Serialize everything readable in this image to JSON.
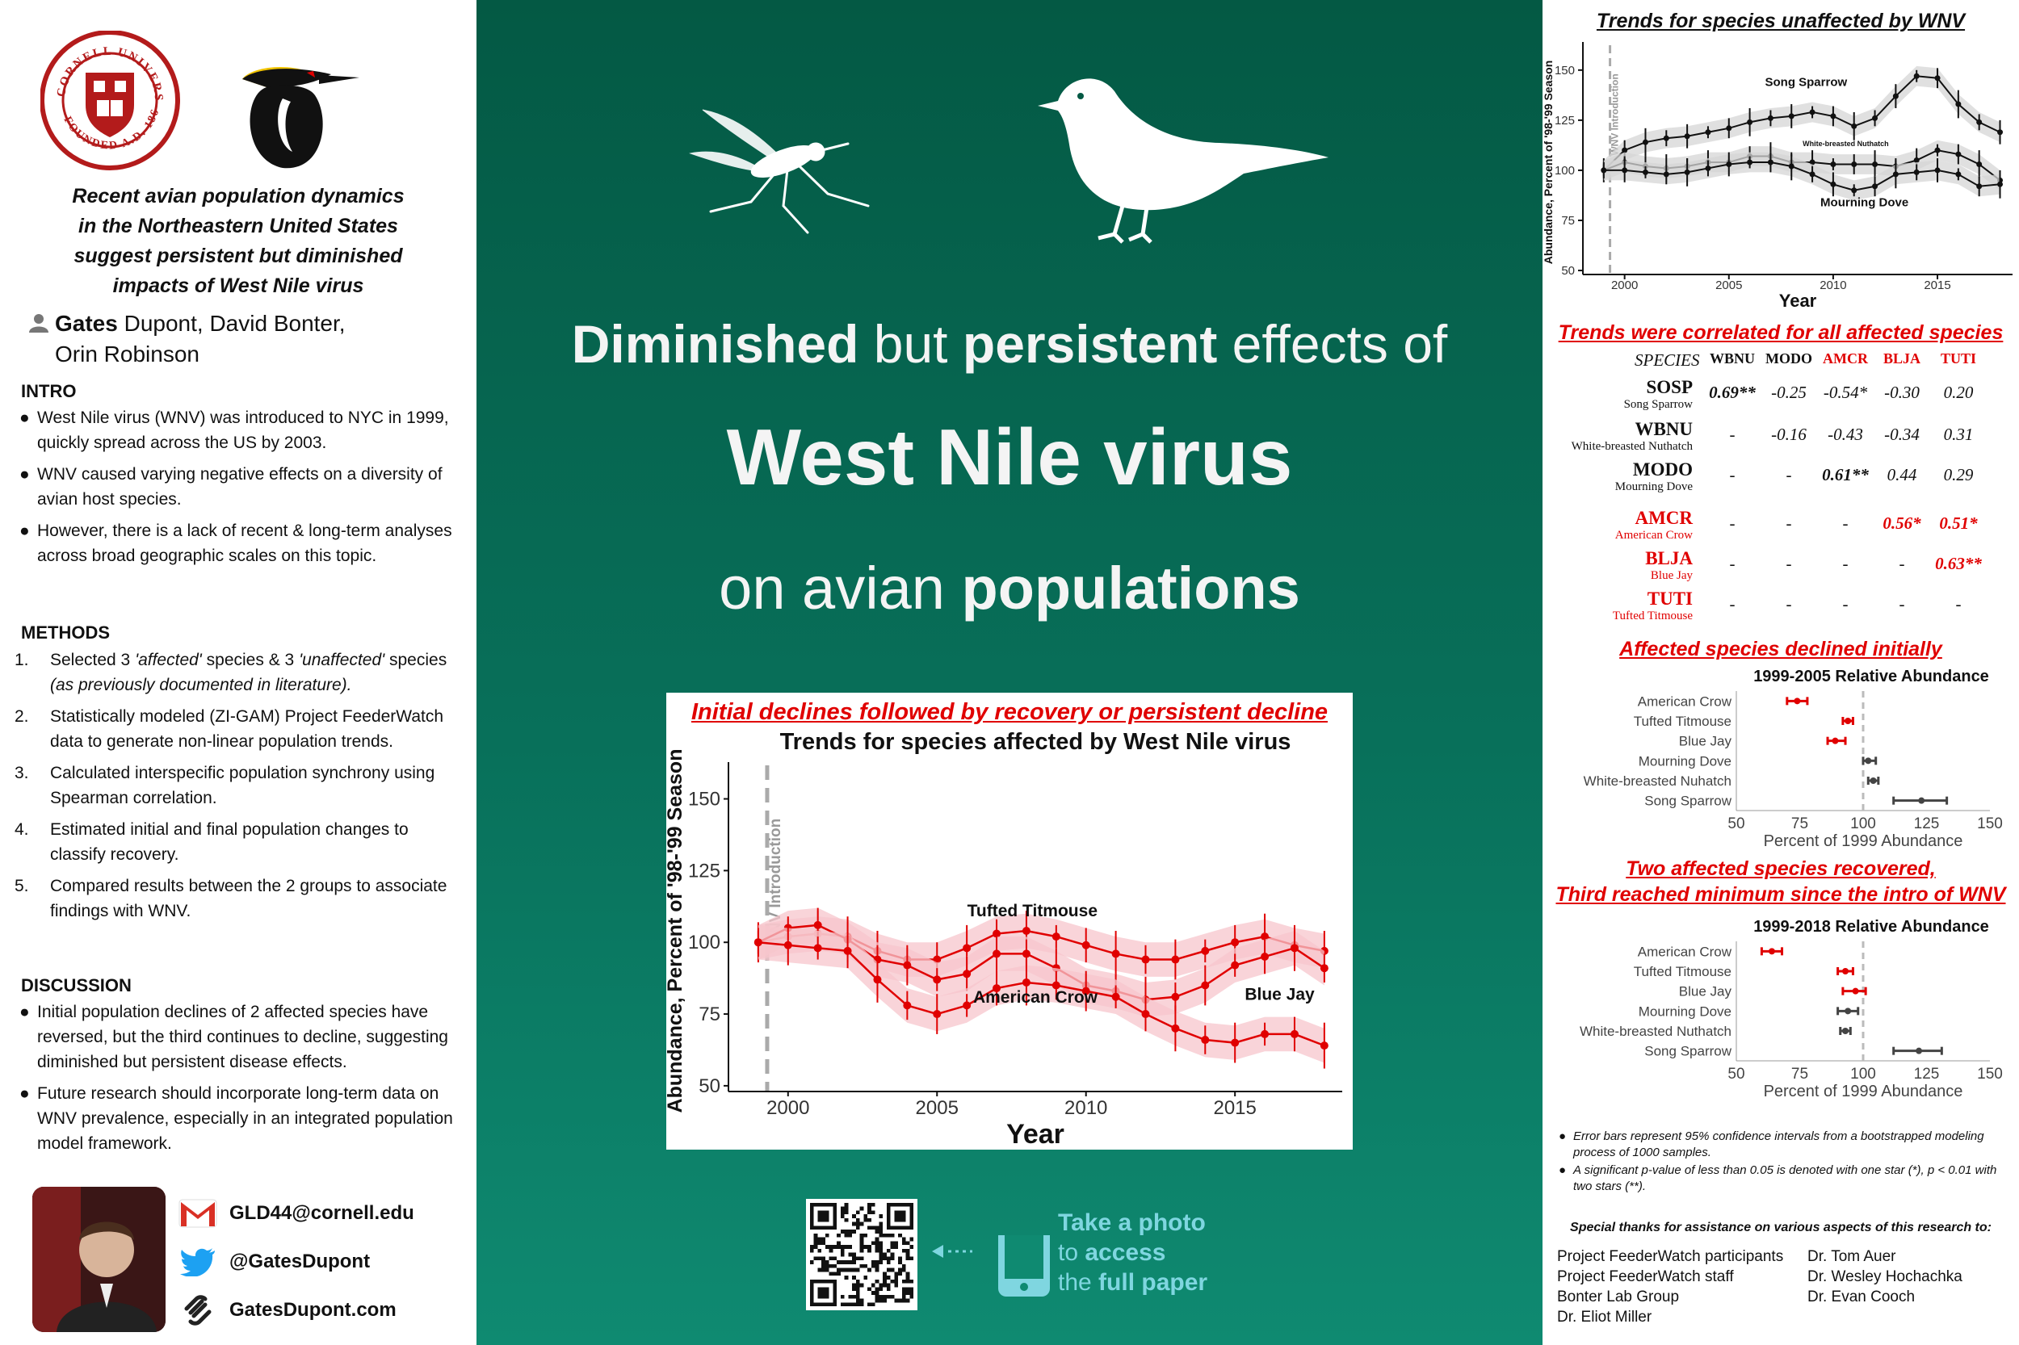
{
  "left": {
    "university_seal_text": "CORNELL UNIVERSITY FOUNDED A.D. 1865",
    "paper_title": [
      "Recent avian population dynamics",
      "in the Northeastern United States",
      "suggest persistent but diminished",
      "impacts of West Nile virus"
    ],
    "authors_lead": "Gates",
    "authors_line1_rest": " Dupont, David Bonter,",
    "authors_line2": "Orin Robinson",
    "intro_heading": "INTRO",
    "intro_items": [
      "West Nile virus (WNV) was introduced to NYC in 1999, quickly spread across the US by 2003.",
      "WNV caused varying negative effects on a diversity of avian host species.",
      "However, there is a lack of recent & long-term analyses across broad geographic scales on this topic."
    ],
    "methods_heading": "METHODS",
    "methods_items": [
      {
        "num": "1.",
        "pre": "Selected  3 ",
        "em1": "'affected'",
        "mid": " species & 3 ",
        "em2": "'unaffected'",
        "post": " species ",
        "em3": "(as previously documented  in literature)."
      },
      {
        "num": "2.",
        "text": "Statistically modeled (ZI-GAM) Project FeederWatch data to generate non-linear population trends."
      },
      {
        "num": "3.",
        "text": "Calculated interspecific population synchrony using Spearman correlation."
      },
      {
        "num": "4.",
        "text": "Estimated initial and final population changes to classify recovery."
      },
      {
        "num": "5.",
        "text": "Compared results between the 2 groups to associate findings with WNV."
      }
    ],
    "discussion_heading": "DISCUSSION",
    "discussion_items": [
      "Initial population declines of 2 affected species have reversed, but the third continues to decline, suggesting diminished but persistent disease effects.",
      "Future research should incorporate long-term data on WNV prevalence, especially in an integrated population model framework."
    ],
    "contact": {
      "email": "GLD44@cornell.edu",
      "twitter": "@GatesDupont",
      "website": "GatesDupont.com"
    }
  },
  "center": {
    "headline1": {
      "a": "Diminished",
      "b": " but ",
      "c": "persistent",
      "d": " effects of"
    },
    "headline2": "West Nile virus",
    "headline3": {
      "a": "on avian ",
      "b": "populations"
    },
    "chart_heading": "Initial declines followed by recovery or persistent decline",
    "cta": {
      "l1a": "Take a photo",
      "l2a": "to ",
      "l2b": "access",
      "l3a": "the ",
      "l3b": "full paper"
    }
  },
  "right": {
    "unaffected_heading": "Trends for species unaffected by WNV",
    "corr_heading": "Trends were correlated for all affected species",
    "corr_table": {
      "corner": "SPECIES",
      "columns": [
        "WBNU",
        "MODO",
        "AMCR",
        "BLJA",
        "TUTI"
      ],
      "column_colors": [
        "#111111",
        "#111111",
        "#e00000",
        "#e00000",
        "#e00000"
      ],
      "rows": [
        {
          "code": "SOSP",
          "name": "Song Sparrow",
          "color": "#111111",
          "cells": [
            "0.69**",
            "-0.25",
            "-0.54*",
            "-0.30",
            "0.20"
          ],
          "bold": [
            true,
            false,
            false,
            false,
            false
          ]
        },
        {
          "code": "WBNU",
          "name": "White-breasted Nuthatch",
          "color": "#111111",
          "cells": [
            "-",
            "-0.16",
            "-0.43",
            "-0.34",
            "0.31"
          ],
          "bold": [
            false,
            false,
            false,
            false,
            false
          ]
        },
        {
          "code": "MODO",
          "name": "Mourning Dove",
          "color": "#111111",
          "cells": [
            "-",
            "-",
            "0.61**",
            "0.44",
            "0.29"
          ],
          "bold": [
            false,
            false,
            true,
            false,
            false
          ]
        },
        {
          "code": "AMCR",
          "name": "American Crow",
          "color": "#e00000",
          "cells": [
            "-",
            "-",
            "-",
            "0.56*",
            "0.51*"
          ],
          "bold": [
            false,
            false,
            false,
            true,
            true
          ]
        },
        {
          "code": "BLJA",
          "name": "Blue Jay",
          "color": "#e00000",
          "cells": [
            "-",
            "-",
            "-",
            "-",
            "0.63**"
          ],
          "bold": [
            false,
            false,
            false,
            false,
            true
          ]
        },
        {
          "code": "TUTI",
          "name": "Tufted Titmouse",
          "color": "#e00000",
          "cells": [
            "-",
            "-",
            "-",
            "-",
            "-"
          ],
          "bold": [
            false,
            false,
            false,
            false,
            false
          ]
        }
      ]
    },
    "initial_heading": "Affected species declined initially",
    "recovered_heading_1": "Two affected species recovered,",
    "recovered_heading_2": "Third reached minimum since the intro of WNV",
    "footnotes": [
      "Error bars represent 95% confidence intervals from a bootstrapped modeling process of 1000 samples.",
      "A significant p-value of less than 0.05 is denoted with one star (*), p < 0.01 with two stars (**)."
    ],
    "thanks_title": "Special thanks for assistance on various aspects of this research to:",
    "thanks_left": [
      "Project FeederWatch participants",
      "Project FeederWatch staff",
      "Bonter  Lab Group",
      "Dr. Eliot Miller"
    ],
    "thanks_right": [
      "Dr. Tom Auer",
      "Dr. Wesley Hochachka",
      "Dr. Evan Cooch"
    ]
  },
  "colors": {
    "red": "#e00000",
    "green_dark": "#045944",
    "green_light": "#0f8a71",
    "teal_text": "#7fd6e0",
    "cornell_red": "#b31b1b"
  },
  "chart_data": [
    {
      "id": "affected",
      "type": "line",
      "title": "Trends for species affected by West Nile virus",
      "xlabel": "Year",
      "ylabel": "Abundance, Percent of '98-'99 Season",
      "xlim": [
        1998,
        2018.6
      ],
      "ylim": [
        48,
        160
      ],
      "xticks": [
        2000,
        2005,
        2010,
        2015
      ],
      "yticks": [
        50,
        75,
        100,
        125,
        150
      ],
      "vline": {
        "x": 1999.3,
        "label": "WNV Introduction"
      },
      "x": [
        1999,
        2000,
        2001,
        2002,
        2003,
        2004,
        2005,
        2006,
        2007,
        2008,
        2009,
        2010,
        2011,
        2012,
        2013,
        2014,
        2015,
        2016,
        2017,
        2018
      ],
      "series": [
        {
          "name": "Tufted Titmouse",
          "color": "#e00000",
          "label_at": [
            2008.2,
            109
          ],
          "values": [
            100,
            102,
            103,
            102,
            97,
            94,
            94,
            98,
            103,
            104,
            102,
            99,
            96,
            94,
            94,
            97,
            100,
            102,
            99,
            97
          ]
        },
        {
          "name": "Blue Jay",
          "color": "#e00000",
          "label_at": [
            2016.5,
            80
          ],
          "values": [
            100,
            105,
            106,
            101,
            94,
            92,
            87,
            89,
            96,
            96,
            91,
            85,
            83,
            80,
            81,
            85,
            92,
            95,
            98,
            91
          ]
        },
        {
          "name": "American Crow",
          "color": "#e00000",
          "label_at": [
            2008.3,
            79
          ],
          "values": [
            100,
            99,
            98,
            97,
            87,
            78,
            75,
            78,
            84,
            86,
            85,
            83,
            81,
            75,
            70,
            66,
            65,
            68,
            68,
            64
          ]
        }
      ]
    },
    {
      "id": "unaffected",
      "type": "line",
      "title": "",
      "xlabel": "Year",
      "ylabel": "Abundance, Percent of '98-'99 Season",
      "xlim": [
        1998,
        2018.6
      ],
      "ylim": [
        48,
        160
      ],
      "xticks": [
        2000,
        2005,
        2010,
        2015
      ],
      "yticks": [
        50,
        75,
        100,
        125,
        150
      ],
      "vline": {
        "x": 1999.3,
        "label": "WNV Introduction"
      },
      "x": [
        1999,
        2000,
        2001,
        2002,
        2003,
        2004,
        2005,
        2006,
        2007,
        2008,
        2009,
        2010,
        2011,
        2012,
        2013,
        2014,
        2015,
        2016,
        2017,
        2018
      ],
      "series": [
        {
          "name": "Song Sparrow",
          "color": "#111111",
          "label_at": [
            2008.7,
            142
          ],
          "values": [
            100,
            110,
            114,
            116,
            117,
            119,
            121,
            124,
            126,
            127,
            129,
            127,
            122,
            126,
            137,
            147,
            146,
            133,
            124,
            119
          ]
        },
        {
          "name": "White-breasted Nuthatch",
          "color": "#111111",
          "label_at": [
            2010.6,
            112
          ],
          "values": [
            100,
            104,
            102,
            101,
            102,
            104,
            104,
            107,
            107,
            104,
            104,
            103,
            103,
            103,
            102,
            105,
            110,
            108,
            103,
            95
          ]
        },
        {
          "name": "Mourning Dove",
          "color": "#111111",
          "label_at": [
            2011.5,
            82
          ],
          "values": [
            100,
            100,
            99,
            98,
            99,
            101,
            103,
            104,
            104,
            102,
            98,
            93,
            90,
            92,
            98,
            99,
            100,
            98,
            92,
            93
          ]
        }
      ]
    },
    {
      "id": "initial",
      "type": "scatter",
      "title": "1999-2005 Relative Abundance",
      "xlabel": "Percent of 1999 Abundance",
      "xlim": [
        50,
        150
      ],
      "xticks": [
        50,
        75,
        100,
        125,
        150
      ],
      "refline": 100,
      "categories": [
        "American Crow",
        "Tufted Titmouse",
        "Blue Jay",
        "Mourning Dove",
        "White-breasted Nuhatch",
        "Song Sparrow"
      ],
      "values": [
        74,
        94,
        89,
        102,
        104,
        123
      ],
      "ci": [
        [
          70,
          78
        ],
        [
          92,
          96
        ],
        [
          86,
          93
        ],
        [
          100,
          105
        ],
        [
          102,
          106
        ],
        [
          112,
          133
        ]
      ],
      "colors": [
        "#e00000",
        "#e00000",
        "#e00000",
        "#444444",
        "#444444",
        "#444444"
      ]
    },
    {
      "id": "final",
      "type": "scatter",
      "title": "1999-2018 Relative Abundance",
      "xlabel": "Percent of 1999 Abundance",
      "xlim": [
        50,
        150
      ],
      "xticks": [
        50,
        75,
        100,
        125,
        150
      ],
      "refline": 100,
      "categories": [
        "American Crow",
        "Tufted Titmouse",
        "Blue Jay",
        "Mourning Dove",
        "White-breasted Nuthatch",
        "Song Sparrow"
      ],
      "values": [
        64,
        93,
        97,
        94,
        93,
        122
      ],
      "ci": [
        [
          60,
          68
        ],
        [
          90,
          96
        ],
        [
          92,
          101
        ],
        [
          90,
          98
        ],
        [
          91,
          95
        ],
        [
          112,
          131
        ]
      ],
      "colors": [
        "#e00000",
        "#e00000",
        "#e00000",
        "#444444",
        "#444444",
        "#444444"
      ]
    }
  ]
}
